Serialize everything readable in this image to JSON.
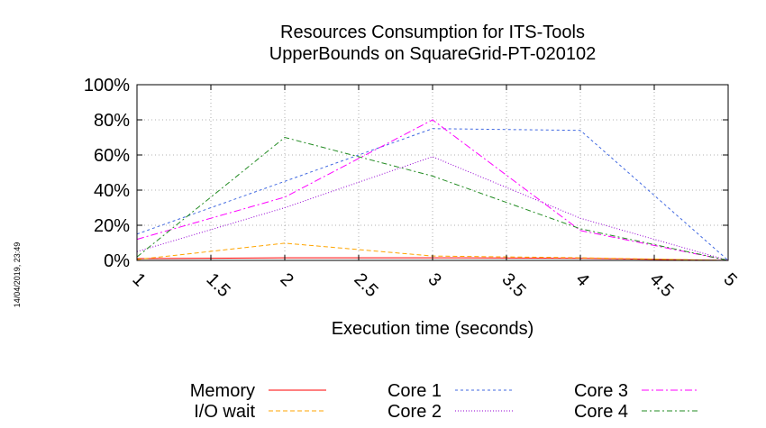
{
  "timestamp": "14/04/2019, 23:49",
  "chart_data": {
    "type": "line",
    "title_lines": [
      "Resources Consumption for ITS-Tools",
      "UpperBounds on SquareGrid-PT-020102"
    ],
    "xlabel": "Execution time (seconds)",
    "ylabel": "",
    "xlim": [
      1,
      5
    ],
    "ylim": [
      0,
      100
    ],
    "x_ticks": [
      {
        "value": 1,
        "label": "1"
      },
      {
        "value": 1.5,
        "label": "1.5"
      },
      {
        "value": 2,
        "label": "2"
      },
      {
        "value": 2.5,
        "label": "2.5"
      },
      {
        "value": 3,
        "label": "3"
      },
      {
        "value": 3.5,
        "label": "3.5"
      },
      {
        "value": 4,
        "label": "4"
      },
      {
        "value": 4.5,
        "label": "4.5"
      },
      {
        "value": 5,
        "label": "5"
      }
    ],
    "y_ticks": [
      {
        "value": 0,
        "label": "0%"
      },
      {
        "value": 20,
        "label": "20%"
      },
      {
        "value": 40,
        "label": "40%"
      },
      {
        "value": 60,
        "label": "60%"
      },
      {
        "value": 80,
        "label": "80%"
      },
      {
        "value": 100,
        "label": "100%"
      }
    ],
    "grid": true,
    "legend_position": "bottom",
    "x": [
      1,
      2,
      3,
      4,
      5
    ],
    "series": [
      {
        "name": "Memory",
        "color": "#ff0000",
        "dash": "solid",
        "values": [
          1,
          1.5,
          1.5,
          1.2,
          0
        ]
      },
      {
        "name": "I/O wait",
        "color": "#ffa500",
        "dash": "dashed",
        "values": [
          0.5,
          9.8,
          2.5,
          1.5,
          0
        ]
      },
      {
        "name": "Core 1",
        "color": "#4169e1",
        "dash": "dashed-fine",
        "values": [
          15,
          45,
          75,
          74,
          0
        ]
      },
      {
        "name": "Core 2",
        "color": "#9400d3",
        "dash": "dotted",
        "values": [
          5,
          30,
          59,
          24,
          0
        ]
      },
      {
        "name": "Core 3",
        "color": "#ff00ff",
        "dash": "dash-dot",
        "values": [
          12,
          36,
          80,
          17,
          0
        ]
      },
      {
        "name": "Core 4",
        "color": "#228b22",
        "dash": "dash-dot-long",
        "values": [
          2,
          70,
          48,
          18,
          0
        ]
      }
    ]
  }
}
